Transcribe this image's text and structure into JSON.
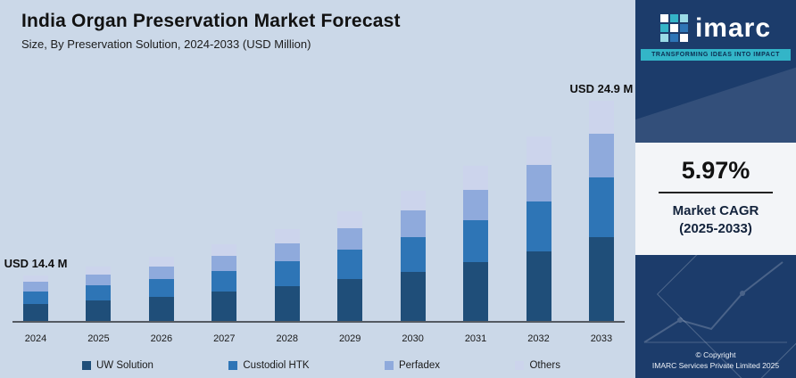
{
  "header": {
    "title": "India Organ Preservation Market Forecast",
    "subtitle": "Size, By Preservation Solution, 2024-2033 (USD Million)"
  },
  "colors": {
    "main_bg": "#cbd8e8",
    "sidebar_bg": "#1c3c6b",
    "accent": "#33b5c8"
  },
  "chart_data": {
    "type": "bar",
    "stacked": true,
    "title": "India Organ Preservation Market Forecast",
    "subtitle": "Size, By Preservation Solution, 2024-2033 (USD Million)",
    "unit": "USD Million",
    "categories": [
      "2024",
      "2025",
      "2026",
      "2027",
      "2028",
      "2029",
      "2030",
      "2031",
      "2032",
      "2033"
    ],
    "series": [
      {
        "name": "UW Solution",
        "color": "#1f4e79",
        "values": [
          5.5,
          6.0,
          6.3,
          6.7,
          7.1,
          7.5,
          7.9,
          8.4,
          8.9,
          9.5
        ]
      },
      {
        "name": "Custodiol HTK",
        "color": "#2e75b6",
        "values": [
          3.9,
          4.2,
          4.5,
          4.8,
          5.0,
          5.3,
          5.6,
          6.0,
          6.3,
          6.7
        ]
      },
      {
        "name": "Perfadex",
        "color": "#8faadc",
        "values": [
          2.9,
          3.1,
          3.3,
          3.5,
          3.7,
          3.9,
          4.2,
          4.4,
          4.7,
          5.0
        ]
      },
      {
        "name": "Others",
        "color": "#ccd4ec",
        "values": [
          2.1,
          2.4,
          2.5,
          2.6,
          2.8,
          3.0,
          3.2,
          3.4,
          3.6,
          3.7
        ]
      }
    ],
    "totals": [
      14.4,
      15.7,
      16.6,
      17.6,
      18.6,
      19.7,
      20.9,
      22.2,
      23.5,
      24.9
    ],
    "annotations": [
      {
        "category": "2024",
        "text": "USD 14.4 M"
      },
      {
        "category": "2033",
        "text": "USD 24.9 M"
      }
    ],
    "ylim": [
      0,
      25
    ],
    "grid": false,
    "legend_position": "bottom"
  },
  "sidebar": {
    "logo_text": "imarc",
    "tagline": "TRANSFORMING IDEAS INTO IMPACT",
    "cagr_value": "5.97%",
    "cagr_line1": "Market CAGR",
    "cagr_line2": "(2025-2033)",
    "copyright_line1": "© Copyright",
    "copyright_line2": "IMARC Services Private Limited 2025"
  }
}
